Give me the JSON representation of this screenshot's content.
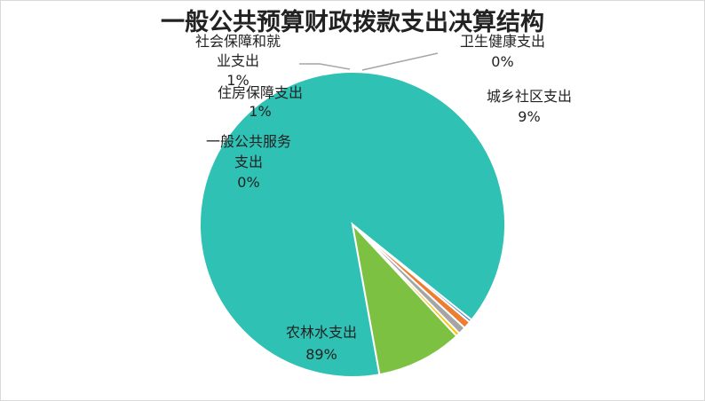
{
  "chart_data": {
    "type": "pie",
    "title": "一般公共预算财政拨款支出决算结构",
    "legend": "none",
    "slices": [
      {
        "name": "农林水支出",
        "name_lines": [
          "农林水支出"
        ],
        "percent_label": "89%",
        "value": 88.6,
        "color": "#2fc1b4"
      },
      {
        "name": "一般公共服务支出",
        "name_lines": [
          "一般公共服务",
          "支出"
        ],
        "percent_label": "0%",
        "value": 0.3,
        "color": "#4472c4"
      },
      {
        "name": "住房保障支出",
        "name_lines": [
          "住房保障支出"
        ],
        "percent_label": "1%",
        "value": 0.8,
        "color": "#ed7d31"
      },
      {
        "name": "社会保障和就业支出",
        "name_lines": [
          "社会保障和就",
          "业支出"
        ],
        "percent_label": "1%",
        "value": 0.8,
        "color": "#a5a5a5"
      },
      {
        "name": "卫生健康支出",
        "name_lines": [
          "卫生健康支出"
        ],
        "percent_label": "0%",
        "value": 0.4,
        "color": "#ffc000"
      },
      {
        "name": "城乡社区支出",
        "name_lines": [
          "城乡社区支出"
        ],
        "percent_label": "9%",
        "value": 9.1,
        "color": "#7dc142"
      }
    ]
  }
}
